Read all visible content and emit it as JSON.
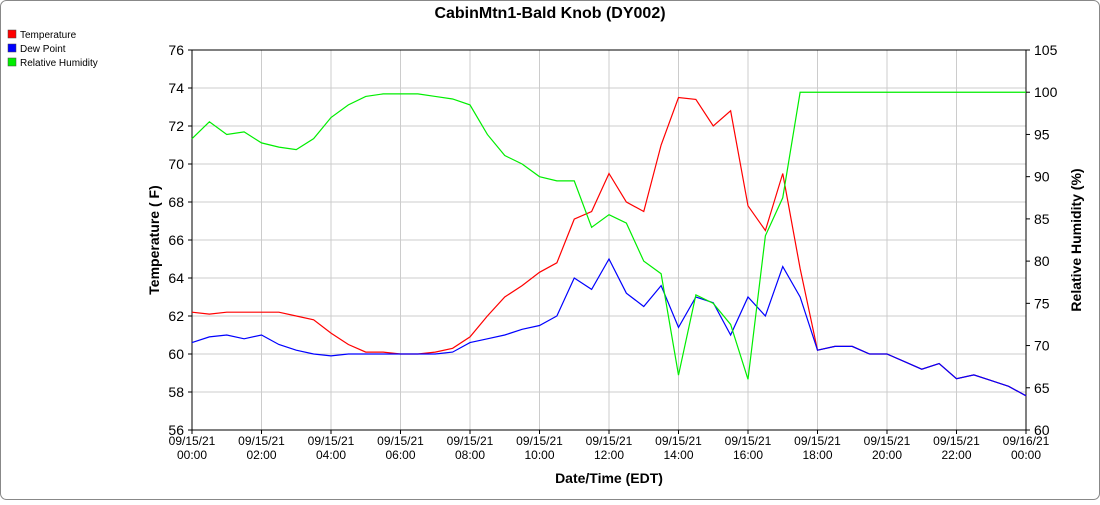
{
  "chart_data": {
    "type": "line",
    "title": "CabinMtn1-Bald Knob (DY002)",
    "x_label": "Date/Time (EDT)",
    "y_label": "Temperature ( F)",
    "y2_label": "Relative Humidity (%)",
    "grid": true,
    "legend": "top-left",
    "xlim": [
      "09/15/21 00:00",
      "09/16/21 00:00"
    ],
    "xticks": [
      "09/15/21 00:00",
      "09/15/21 02:00",
      "09/15/21 04:00",
      "09/15/21 06:00",
      "09/15/21 08:00",
      "09/15/21 10:00",
      "09/15/21 12:00",
      "09/15/21 14:00",
      "09/15/21 16:00",
      "09/15/21 18:00",
      "09/15/21 20:00",
      "09/15/21 22:00",
      "09/16/21 00:00"
    ],
    "ylim": [
      56,
      76
    ],
    "yticks": [
      56,
      58,
      60,
      62,
      64,
      66,
      68,
      70,
      72,
      74,
      76
    ],
    "y2lim": [
      60,
      105
    ],
    "y2ticks": [
      60,
      65,
      70,
      75,
      80,
      85,
      90,
      95,
      100,
      105
    ],
    "x": [
      "09/15/21 00:00",
      "09/15/21 00:30",
      "09/15/21 01:00",
      "09/15/21 01:30",
      "09/15/21 02:00",
      "09/15/21 02:30",
      "09/15/21 03:00",
      "09/15/21 03:30",
      "09/15/21 04:00",
      "09/15/21 04:30",
      "09/15/21 05:00",
      "09/15/21 05:30",
      "09/15/21 06:00",
      "09/15/21 06:30",
      "09/15/21 07:00",
      "09/15/21 07:30",
      "09/15/21 08:00",
      "09/15/21 08:30",
      "09/15/21 09:00",
      "09/15/21 09:30",
      "09/15/21 10:00",
      "09/15/21 10:30",
      "09/15/21 11:00",
      "09/15/21 11:30",
      "09/15/21 12:00",
      "09/15/21 12:30",
      "09/15/21 13:00",
      "09/15/21 13:30",
      "09/15/21 14:00",
      "09/15/21 14:30",
      "09/15/21 15:00",
      "09/15/21 15:30",
      "09/15/21 16:00",
      "09/15/21 16:30",
      "09/15/21 17:00",
      "09/15/21 17:30",
      "09/15/21 18:00",
      "09/15/21 18:30",
      "09/15/21 19:00",
      "09/15/21 19:30",
      "09/15/21 20:00",
      "09/15/21 20:30",
      "09/15/21 21:00",
      "09/15/21 21:30",
      "09/15/21 22:00",
      "09/15/21 22:30",
      "09/15/21 23:00",
      "09/15/21 23:30",
      "09/16/21 00:00"
    ],
    "series": [
      {
        "name": "Temperature",
        "color": "#ff0000",
        "values": [
          62.2,
          62.1,
          62.2,
          62.2,
          62.2,
          62.2,
          62.0,
          61.8,
          61.1,
          60.5,
          60.1,
          60.1,
          60.0,
          60.0,
          60.1,
          60.3,
          60.9,
          62.0,
          63.0,
          63.6,
          64.3,
          64.8,
          67.1,
          67.5,
          69.5,
          68.0,
          67.5,
          71.0,
          73.5,
          73.4,
          72.0,
          72.8,
          67.8,
          66.5,
          69.5,
          64.5,
          60.2,
          60.4,
          60.4,
          60.0,
          60.0,
          59.6,
          59.2,
          59.5,
          58.7,
          58.9,
          58.6,
          58.3,
          57.8
        ]
      },
      {
        "name": "Dew Point",
        "color": "#0000ff",
        "values": [
          60.6,
          60.9,
          61.0,
          60.8,
          61.0,
          60.5,
          60.2,
          60.0,
          59.9,
          60.0,
          60.0,
          60.0,
          60.0,
          60.0,
          60.0,
          60.1,
          60.6,
          60.8,
          61.0,
          61.3,
          61.5,
          62.0,
          64.0,
          63.4,
          65.0,
          63.2,
          62.5,
          63.6,
          61.4,
          63.0,
          62.7,
          61.0,
          63.0,
          62.0,
          64.6,
          63.0,
          60.2,
          60.4,
          60.4,
          60.0,
          60.0,
          59.6,
          59.2,
          59.5,
          58.7,
          58.9,
          58.6,
          58.3,
          57.8
        ]
      },
      {
        "name": "Relative Humidity",
        "color": "#00ee00",
        "axis": "y2",
        "values": [
          94.5,
          96.5,
          95.0,
          95.3,
          94.0,
          93.5,
          93.2,
          94.5,
          97.0,
          98.5,
          99.5,
          99.8,
          99.8,
          99.8,
          99.5,
          99.2,
          98.5,
          95.0,
          92.5,
          91.5,
          90.0,
          89.5,
          89.5,
          84.0,
          85.5,
          84.5,
          80.0,
          78.5,
          66.5,
          76.0,
          75.0,
          72.5,
          66.0,
          83.0,
          87.5,
          100,
          100,
          100,
          100,
          100,
          100,
          100,
          100,
          100,
          100,
          100,
          100,
          100,
          100
        ]
      }
    ]
  }
}
